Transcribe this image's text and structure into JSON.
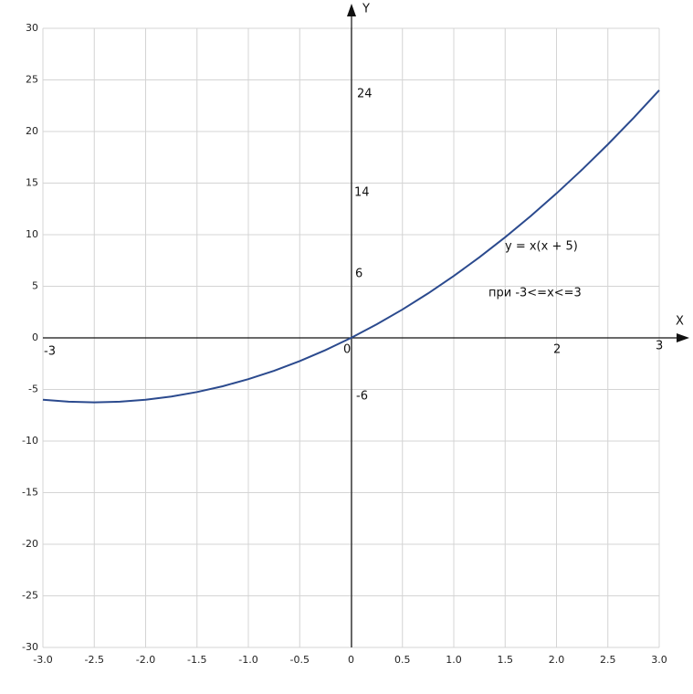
{
  "chart_data": {
    "type": "line",
    "x": [
      -3,
      -2.75,
      -2.5,
      -2.25,
      -2,
      -1.75,
      -1.5,
      -1.25,
      -1,
      -0.75,
      -0.5,
      -0.25,
      0,
      0.25,
      0.5,
      0.75,
      1,
      1.25,
      1.5,
      1.75,
      2,
      2.25,
      2.5,
      2.75,
      3
    ],
    "values": [
      -6,
      -6.1875,
      -6.25,
      -6.1875,
      -6,
      -5.6875,
      -5.25,
      -4.6875,
      -4,
      -3.1875,
      -2.25,
      -1.1875,
      0,
      1.3125,
      2.75,
      4.3125,
      6,
      7.8125,
      9.75,
      11.8125,
      14,
      16.3125,
      18.75,
      21.3125,
      24
    ],
    "color": "#2b4a8e",
    "x_label": "X",
    "y_label": "Y",
    "xlim": [
      -3,
      3
    ],
    "ylim": [
      -30,
      30
    ],
    "xticks": [
      {
        "value": -3,
        "label": "-3.0"
      },
      {
        "value": -2.5,
        "label": "-2.5"
      },
      {
        "value": -2,
        "label": "-2.0"
      },
      {
        "value": -1.5,
        "label": "-1.5"
      },
      {
        "value": -1,
        "label": "-1.0"
      },
      {
        "value": -0.5,
        "label": "-0.5"
      },
      0,
      0.5,
      {
        "value": 1,
        "label": "1.0"
      },
      1.5,
      {
        "value": 2,
        "label": "2.0"
      },
      2.5,
      {
        "value": 3,
        "label": "3.0"
      }
    ],
    "yticks": [
      -30,
      -25,
      -20,
      -15,
      -10,
      -5,
      0,
      5,
      10,
      15,
      20,
      25,
      30
    ],
    "grid": true,
    "annotations": [
      "24",
      "14",
      "6",
      "-6",
      "0",
      "-3",
      "2",
      "3",
      "y = x(x + 5)",
      "при -3<=x<=3"
    ]
  }
}
